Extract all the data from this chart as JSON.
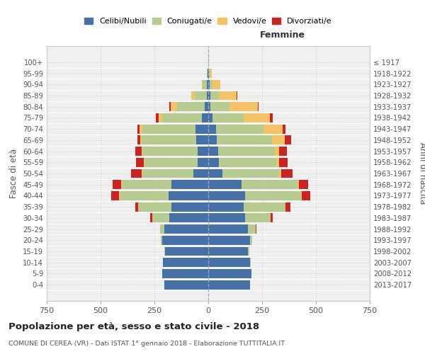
{
  "age_groups": [
    "0-4",
    "5-9",
    "10-14",
    "15-19",
    "20-24",
    "25-29",
    "30-34",
    "35-39",
    "40-44",
    "45-49",
    "50-54",
    "55-59",
    "60-64",
    "65-69",
    "70-74",
    "75-79",
    "80-84",
    "85-89",
    "90-94",
    "95-99",
    "100+"
  ],
  "birth_years": [
    "2013-2017",
    "2008-2012",
    "2003-2007",
    "1998-2002",
    "1993-1997",
    "1988-1992",
    "1983-1987",
    "1978-1982",
    "1973-1977",
    "1968-1972",
    "1963-1967",
    "1958-1962",
    "1953-1957",
    "1948-1952",
    "1943-1947",
    "1938-1942",
    "1933-1937",
    "1928-1932",
    "1923-1927",
    "1918-1922",
    "≤ 1917"
  ],
  "male": {
    "celibi": [
      205,
      215,
      210,
      200,
      215,
      205,
      180,
      170,
      185,
      170,
      70,
      50,
      50,
      55,
      60,
      30,
      15,
      8,
      5,
      2,
      0
    ],
    "coniugati": [
      0,
      0,
      2,
      5,
      5,
      20,
      80,
      155,
      225,
      230,
      235,
      245,
      255,
      255,
      245,
      185,
      130,
      55,
      20,
      5,
      0
    ],
    "vedovi": [
      0,
      0,
      0,
      0,
      0,
      0,
      0,
      0,
      5,
      5,
      5,
      5,
      5,
      5,
      15,
      15,
      30,
      15,
      5,
      0,
      0
    ],
    "divorziati": [
      0,
      0,
      0,
      0,
      0,
      0,
      10,
      15,
      35,
      40,
      50,
      35,
      30,
      15,
      10,
      15,
      5,
      0,
      0,
      0,
      0
    ]
  },
  "female": {
    "nubili": [
      195,
      200,
      195,
      185,
      195,
      185,
      170,
      165,
      170,
      155,
      65,
      50,
      45,
      40,
      35,
      20,
      10,
      10,
      5,
      2,
      0
    ],
    "coniugate": [
      0,
      0,
      2,
      5,
      10,
      35,
      120,
      195,
      260,
      260,
      265,
      265,
      265,
      255,
      220,
      145,
      90,
      40,
      15,
      5,
      0
    ],
    "vedove": [
      0,
      0,
      0,
      0,
      0,
      0,
      0,
      0,
      5,
      5,
      10,
      15,
      20,
      60,
      90,
      120,
      130,
      80,
      35,
      8,
      2
    ],
    "divorziate": [
      0,
      0,
      0,
      0,
      0,
      5,
      10,
      20,
      40,
      45,
      50,
      40,
      35,
      30,
      15,
      15,
      5,
      5,
      0,
      0,
      0
    ]
  },
  "colors": {
    "celibi": "#4472a8",
    "coniugati": "#b5cc8e",
    "vedovi": "#f5c265",
    "divorziati": "#cc2222"
  },
  "title": "Popolazione per età, sesso e stato civile - 2018",
  "subtitle": "COMUNE DI CEREA (VR) - Dati ISTAT 1° gennaio 2018 - Elaborazione TUTTITALIA.IT",
  "xlabel_right": "Femmine",
  "ylabel_left": "Fasce di età",
  "ylabel_right": "Anni di nascita",
  "xlim": 750,
  "legend_labels": [
    "Celibi/Nubili",
    "Coniugati/e",
    "Vedovi/e",
    "Divorziati/e"
  ],
  "background_color": "#ffffff",
  "grid_color": "#cccccc",
  "bar_height": 0.82
}
